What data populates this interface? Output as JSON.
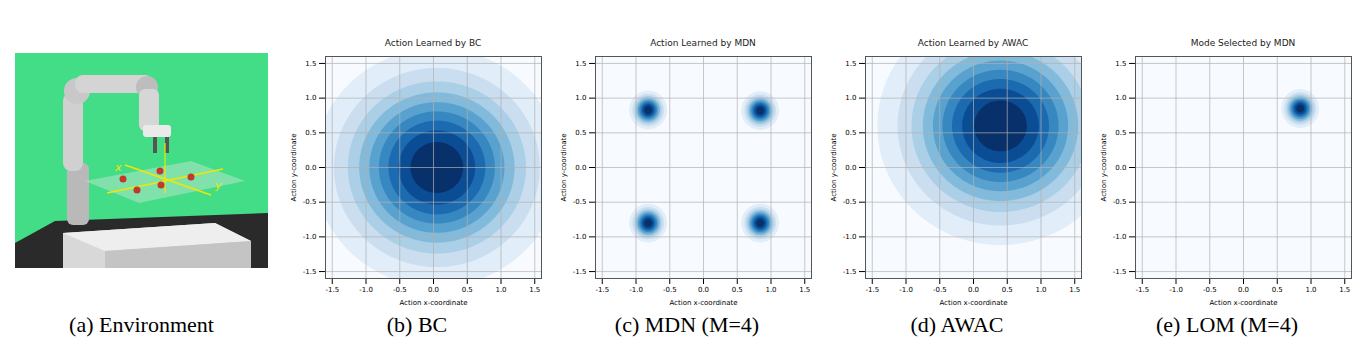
{
  "environment": {
    "caption": "(a) Environment",
    "labels": [
      "x",
      "y"
    ]
  },
  "chart_data": [
    {
      "type": "contour",
      "title": "Action Learned by BC",
      "caption": "(b) BC",
      "x_label": "Action x-coordinate",
      "y_label": "Action y-coordinate",
      "xlim": [
        -1.6,
        1.6
      ],
      "ylim": [
        -1.6,
        1.6
      ],
      "xticks": [
        -1.5,
        {
          "value": -1,
          "label": "-1.0"
        },
        -0.5,
        {
          "value": 0,
          "label": "0.0"
        },
        0.5,
        {
          "value": 1,
          "label": "1.0"
        },
        1.5
      ],
      "yticks": [
        -1.5,
        {
          "value": -1,
          "label": "-1.0"
        },
        -0.5,
        {
          "value": 0,
          "label": "0.0"
        },
        0.5,
        {
          "value": 1,
          "label": "1.0"
        },
        1.5
      ],
      "grid": true,
      "color": "blues",
      "components": [
        {
          "x": 0.05,
          "y": 0.0,
          "sx": 0.85,
          "sy": 0.8,
          "weight": 1
        }
      ]
    },
    {
      "type": "contour",
      "title": "Action Learned by MDN",
      "caption": "(c) MDN (M=4)",
      "x_label": "Action x-coordinate",
      "y_label": "Action y-coordinate",
      "xlim": [
        -1.6,
        1.6
      ],
      "ylim": [
        -1.6,
        1.6
      ],
      "xticks": [
        -1.5,
        {
          "value": -1,
          "label": "-1.0"
        },
        -0.5,
        {
          "value": 0,
          "label": "0.0"
        },
        0.5,
        {
          "value": 1,
          "label": "1.0"
        },
        1.5
      ],
      "yticks": [
        -1.5,
        {
          "value": -1,
          "label": "-1.0"
        },
        -0.5,
        {
          "value": 0,
          "label": "0.0"
        },
        0.5,
        {
          "value": 1,
          "label": "1.0"
        },
        1.5
      ],
      "grid": true,
      "color": "blues",
      "components": [
        {
          "x": -0.82,
          "y": 0.83,
          "sx": 0.13,
          "sy": 0.13,
          "weight": 1
        },
        {
          "x": 0.84,
          "y": 0.82,
          "sx": 0.13,
          "sy": 0.13,
          "weight": 1
        },
        {
          "x": -0.82,
          "y": -0.8,
          "sx": 0.13,
          "sy": 0.13,
          "weight": 1
        },
        {
          "x": 0.84,
          "y": -0.8,
          "sx": 0.13,
          "sy": 0.13,
          "weight": 1
        }
      ]
    },
    {
      "type": "contour",
      "title": "Action Learned by AWAC",
      "caption": "(d) AWAC",
      "x_label": "Action x-coordinate",
      "y_label": "Action y-coordinate",
      "xlim": [
        -1.6,
        1.6
      ],
      "ylim": [
        -1.6,
        1.6
      ],
      "xticks": [
        -1.5,
        {
          "value": -1,
          "label": "-1.0"
        },
        -0.5,
        {
          "value": 0,
          "label": "0.0"
        },
        0.5,
        {
          "value": 1,
          "label": "1.0"
        },
        1.5
      ],
      "yticks": [
        -1.5,
        {
          "value": -1,
          "label": "-1.0"
        },
        -0.5,
        {
          "value": 0,
          "label": "0.0"
        },
        0.5,
        {
          "value": 1,
          "label": "1.0"
        },
        1.5
      ],
      "grid": true,
      "color": "blues",
      "components": [
        {
          "x": 0.4,
          "y": 0.6,
          "sx": 0.85,
          "sy": 0.8,
          "weight": 1
        }
      ]
    },
    {
      "type": "contour",
      "title": "Mode Selected by MDN",
      "caption": "(e) LOM (M=4)",
      "x_label": "Action x-coordinate",
      "y_label": "Action y-coordinate",
      "xlim": [
        -1.6,
        1.6
      ],
      "ylim": [
        -1.6,
        1.6
      ],
      "xticks": [
        -1.5,
        {
          "value": -1,
          "label": "-1.0"
        },
        -0.5,
        {
          "value": 0,
          "label": "0.0"
        },
        0.5,
        {
          "value": 1,
          "label": "1.0"
        },
        1.5
      ],
      "yticks": [
        -1.5,
        {
          "value": -1,
          "label": "-1.0"
        },
        -0.5,
        {
          "value": 0,
          "label": "0.0"
        },
        0.5,
        {
          "value": 1,
          "label": "1.0"
        },
        1.5
      ],
      "grid": true,
      "color": "blues",
      "components": [
        {
          "x": 0.84,
          "y": 0.85,
          "sx": 0.13,
          "sy": 0.13,
          "weight": 1
        }
      ]
    }
  ]
}
